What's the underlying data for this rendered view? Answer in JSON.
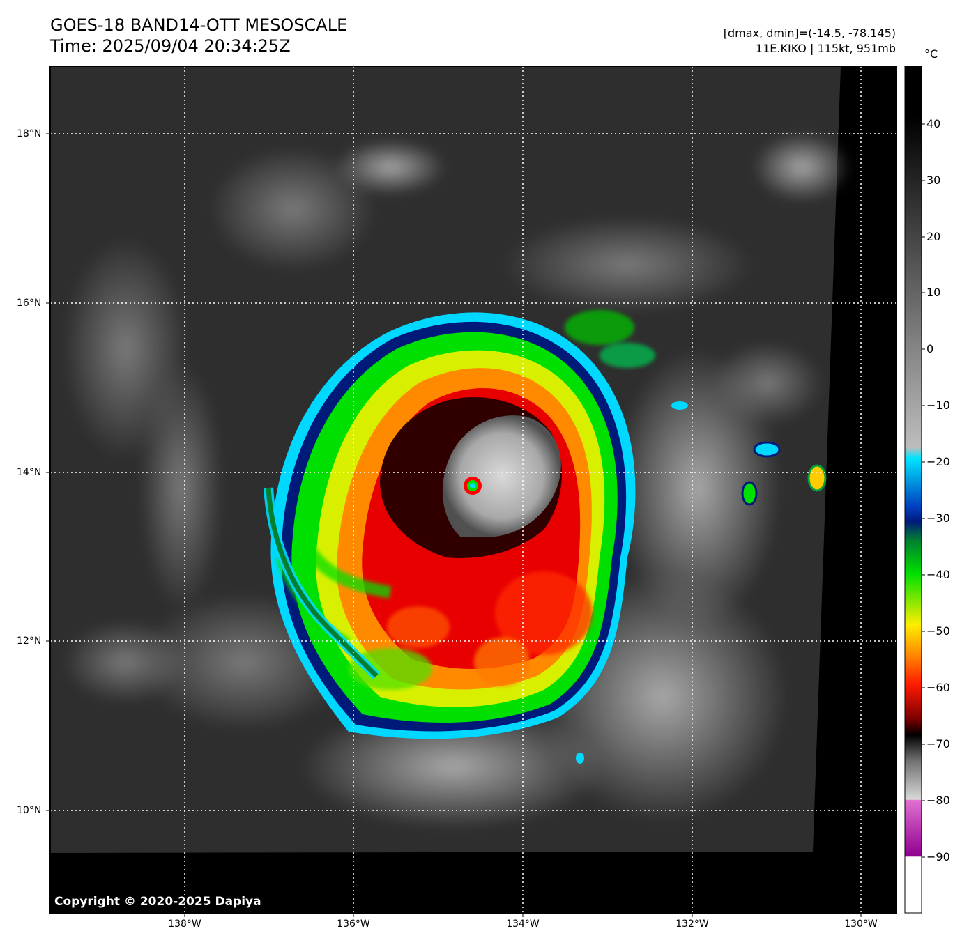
{
  "header": {
    "title_line1": "GOES-18 BAND14-OTT MESOSCALE",
    "title_line2": "Time: 2025/09/04 20:34:25Z",
    "info_line1": "[dmax, dmin]=(-14.5, -78.145)",
    "info_line2": "11E.KIKO | 115kt, 951mb"
  },
  "map": {
    "lat_labels": [
      "18°N",
      "16°N",
      "14°N",
      "12°N",
      "10°N"
    ],
    "lon_labels": [
      "138°W",
      "136°W",
      "134°W",
      "132°W",
      "130°W"
    ],
    "copyright": "Copyright © 2020-2025 Dapiya",
    "storm": {
      "name": "11E.KIKO",
      "wind": "115kt",
      "pressure": "951mb",
      "center_lat": 13.8,
      "center_lon": -134.6
    }
  },
  "colorbar": {
    "unit": "°C",
    "ticks": [
      "40",
      "30",
      "20",
      "10",
      "0",
      "−10",
      "−20",
      "−30",
      "−40",
      "−50",
      "−60",
      "−70",
      "−80",
      "−90"
    ]
  },
  "colors": {
    "background_dark": "#2e2e2e",
    "no_data": "#000000",
    "cold_cyan": "#00e5ff",
    "deep_blue": "#001a7a",
    "green": "#00e000",
    "yellow": "#ffee00",
    "orange": "#ff7a00",
    "red": "#e00000",
    "dark_red": "#3a0000",
    "magenta": "#c040c0"
  }
}
